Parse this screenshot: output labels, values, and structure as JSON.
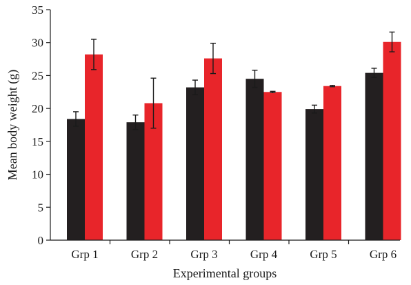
{
  "chart_data": {
    "type": "bar",
    "title": "",
    "xlabel": "Experimental groups",
    "ylabel": "Mean body weight (g)",
    "categories": [
      "Grp 1",
      "Grp 2",
      "Grp 3",
      "Grp 4",
      "Grp 5",
      "Grp 6"
    ],
    "ylim": [
      0,
      35
    ],
    "yticks": [
      "0",
      "5",
      "10",
      "15",
      "20",
      "25",
      "30",
      "35"
    ],
    "grid": false,
    "legend": "none",
    "series": [
      {
        "color": "#231f20",
        "values": [
          18.4,
          17.9,
          23.2,
          24.5,
          19.9,
          25.4
        ],
        "errors": [
          1.1,
          1.1,
          1.1,
          1.3,
          0.6,
          0.7
        ]
      },
      {
        "color": "#e8252a",
        "values": [
          28.2,
          20.8,
          27.6,
          22.5,
          23.4,
          30.1
        ],
        "errors": [
          2.3,
          3.8,
          2.3,
          0.1,
          0.1,
          1.5
        ]
      }
    ]
  }
}
